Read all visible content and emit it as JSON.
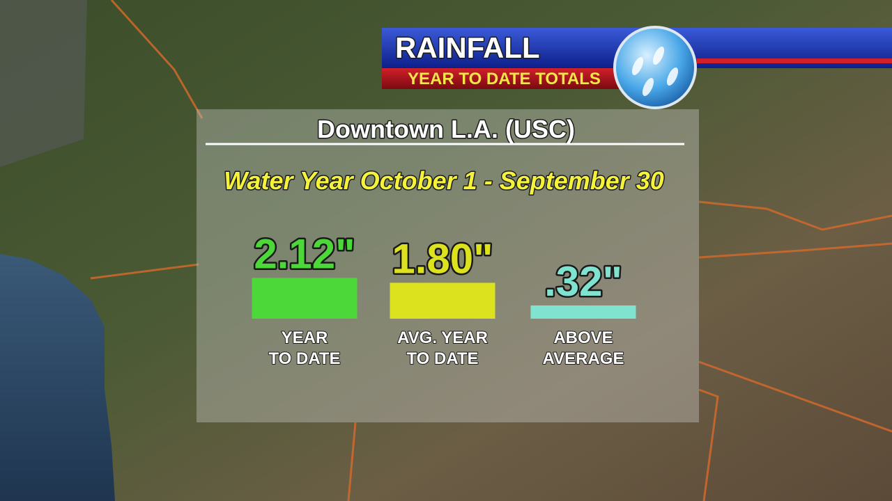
{
  "chart_data": {
    "type": "bar",
    "banner_title": "RAINFALL",
    "banner_subtitle": "YEAR TO DATE TOTALS",
    "title": "Downtown L.A. (USC)",
    "subtitle": "Water Year October 1 - September 30",
    "categories": [
      [
        "YEAR",
        "TO DATE"
      ],
      [
        "AVG. YEAR",
        "TO DATE"
      ],
      [
        "ABOVE",
        "AVERAGE"
      ]
    ],
    "values": [
      2.12,
      1.8,
      0.32
    ],
    "value_labels": [
      "2.12\"",
      "1.80\"",
      ".32\""
    ],
    "colors": [
      "#4cd838",
      "#dde21e",
      "#7fe3cf"
    ]
  }
}
